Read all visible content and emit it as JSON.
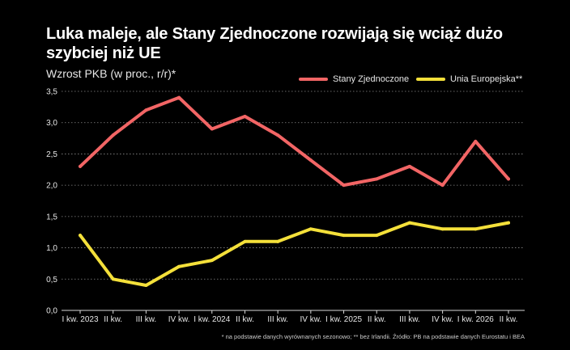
{
  "chart_data": {
    "type": "line",
    "title": "Luka maleje, ale Stany Zjednoczone rozwijają się wciąż dużo szybciej niż UE",
    "subtitle": "Wzrost PKB (w proc., r/r)*",
    "xlabel": "",
    "ylabel": "",
    "categories": [
      "I kw. 2023",
      "II kw.",
      "III kw.",
      "IV kw.",
      "I kw. 2024",
      "II kw.",
      "III kw.",
      "IV kw.",
      "I kw. 2025",
      "II kw.",
      "III kw.",
      "IV kw.",
      "I kw. 2026",
      "II kw."
    ],
    "ylim": [
      0,
      3.5
    ],
    "y_ticks": [
      "0,0",
      "0,5",
      "1,0",
      "1,5",
      "2,0",
      "2,5",
      "3,0",
      "3,5"
    ],
    "y_tick_values": [
      0,
      0.5,
      1.0,
      1.5,
      2.0,
      2.5,
      3.0,
      3.5
    ],
    "grid": true,
    "legend_position": "top-right",
    "series": [
      {
        "name": "Stany Zjednoczone",
        "color": "#f26565",
        "values": [
          2.3,
          2.8,
          3.2,
          3.4,
          2.9,
          3.1,
          2.8,
          2.4,
          2.0,
          2.1,
          2.3,
          2.0,
          2.7,
          2.1
        ]
      },
      {
        "name": "Unia Europejska**",
        "color": "#f4e03a",
        "values": [
          1.2,
          0.5,
          0.4,
          0.7,
          0.8,
          1.1,
          1.1,
          1.3,
          1.2,
          1.2,
          1.4,
          1.3,
          1.3,
          1.4
        ]
      }
    ],
    "footnote": "* na podstawie danych wyrównanych sezonowo; ** bez Irlandii. Źródło: PB na podstawie danych Eurostatu i BEA"
  }
}
